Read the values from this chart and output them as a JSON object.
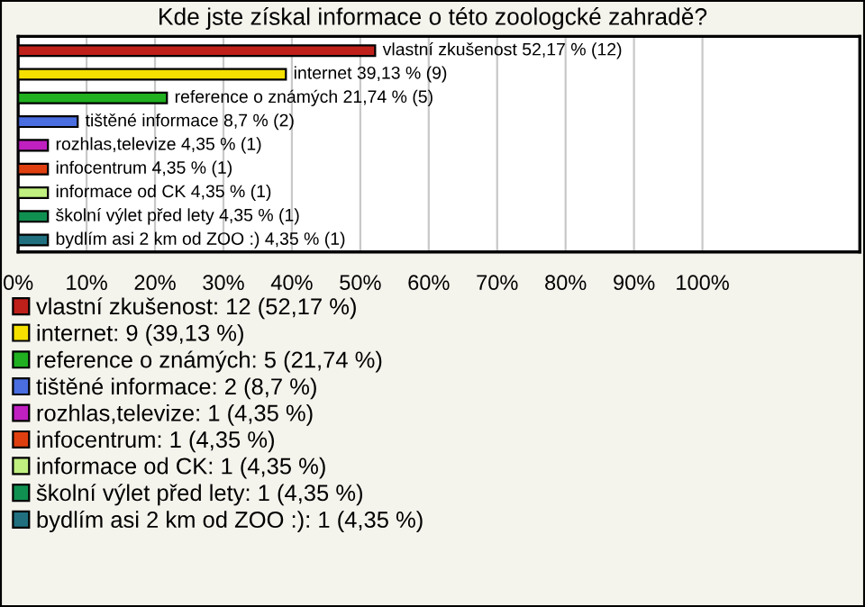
{
  "chart_data": {
    "type": "bar",
    "orientation": "horizontal",
    "stacked": true,
    "title": "Kde jste získal informace o této zoologcké zahradě?",
    "categories": [
      null,
      null,
      null,
      null,
      null,
      null,
      null,
      null,
      null
    ],
    "series": [
      {
        "name": "vlastní zkušenost: 12 (52,17 %)",
        "color": "#c0201a",
        "values": [
          52.17,
          null,
          null,
          null,
          null,
          null,
          null,
          null,
          null
        ],
        "value_labels": [
          "vlastní zkušenost 52,17 % (12)",
          null,
          null,
          null,
          null,
          null,
          null,
          null,
          null
        ]
      },
      {
        "name": "internet: 9 (39,13 %)",
        "color": "#f5e000",
        "values": [
          null,
          39.13,
          null,
          null,
          null,
          null,
          null,
          null,
          null
        ],
        "value_labels": [
          null,
          "internet 39,13 % (9)",
          null,
          null,
          null,
          null,
          null,
          null,
          null
        ]
      },
      {
        "name": "reference o známých: 5 (21,74 %)",
        "color": "#20b020",
        "values": [
          null,
          null,
          21.74,
          null,
          null,
          null,
          null,
          null,
          null
        ],
        "value_labels": [
          null,
          null,
          "reference o známých 21,74 % (5)",
          null,
          null,
          null,
          null,
          null,
          null
        ]
      },
      {
        "name": "tištěné informace: 2 (8,7 %)",
        "color": "#4a6ee0",
        "values": [
          null,
          null,
          null,
          8.7,
          null,
          null,
          null,
          null,
          null
        ],
        "value_labels": [
          null,
          null,
          null,
          "tištěné informace 8,7 % (2)",
          null,
          null,
          null,
          null,
          null
        ]
      },
      {
        "name": "rozhlas,televize: 1 (4,35 %)",
        "color": "#c020c0",
        "values": [
          null,
          null,
          null,
          null,
          4.35,
          null,
          null,
          null,
          null
        ],
        "value_labels": [
          null,
          null,
          null,
          null,
          "rozhlas,televize 4,35 % (1)",
          null,
          null,
          null,
          null
        ]
      },
      {
        "name": "infocentrum: 1 (4,35 %)",
        "color": "#e04010",
        "values": [
          null,
          null,
          null,
          null,
          null,
          4.35,
          null,
          null,
          null
        ],
        "value_labels": [
          null,
          null,
          null,
          null,
          null,
          "infocentrum 4,35 % (1)",
          null,
          null,
          null
        ]
      },
      {
        "name": "informace od CK: 1 (4,35 %)",
        "color": "#c0f080",
        "values": [
          null,
          null,
          null,
          null,
          null,
          null,
          4.35,
          null,
          null
        ],
        "value_labels": [
          null,
          null,
          null,
          null,
          null,
          null,
          "informace od CK 4,35 % (1)",
          null,
          null
        ]
      },
      {
        "name": "školní výlet před lety: 1 (4,35 %)",
        "color": "#109050",
        "values": [
          null,
          null,
          null,
          null,
          null,
          null,
          null,
          4.35,
          null
        ],
        "value_labels": [
          null,
          null,
          null,
          null,
          null,
          null,
          null,
          "školní výlet před lety 4,35 % (1)",
          null
        ]
      },
      {
        "name": "bydlím asi 2 km od ZOO :): 1 (4,35 %)",
        "color": "#207080",
        "values": [
          null,
          null,
          null,
          null,
          null,
          null,
          null,
          null,
          4.35
        ],
        "value_labels": [
          null,
          null,
          null,
          null,
          null,
          null,
          null,
          null,
          "bydlím asi 2 km od ZOO :) 4,35 % (1)"
        ]
      }
    ],
    "xlim": [
      0,
      123
    ],
    "xticks": [
      {
        "value": 0,
        "label": "0%"
      },
      {
        "value": 10,
        "label": "10%"
      },
      {
        "value": 20,
        "label": "20%"
      },
      {
        "value": 30,
        "label": "30%"
      },
      {
        "value": 40,
        "label": "40%"
      },
      {
        "value": 50,
        "label": "50%"
      },
      {
        "value": 60,
        "label": "60%"
      },
      {
        "value": 70,
        "label": "70%"
      },
      {
        "value": 80,
        "label": "80%"
      },
      {
        "value": 90,
        "label": "90%"
      },
      {
        "value": 100,
        "label": "100%"
      }
    ],
    "grid": "x",
    "legend": "bottom",
    "tick_labels": "x"
  }
}
